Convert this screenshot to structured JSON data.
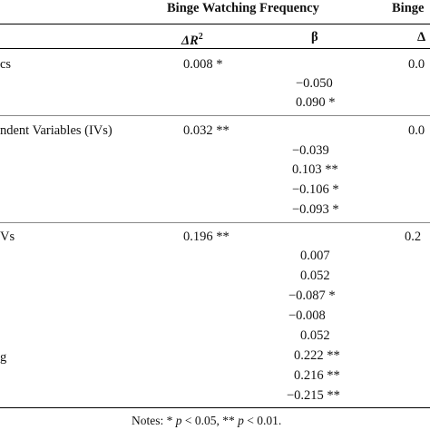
{
  "header": {
    "group1": "Binge Watching Frequency",
    "group2_partial": "Binge",
    "col_delta_r2": "ΔR",
    "col_delta_r2_sup": "2",
    "col_beta": "β",
    "col3_partial": "Δ"
  },
  "rows": {
    "demographics": {
      "label_partial": "cs",
      "delta_r2": "0.008 *",
      "right_partial": "0.0",
      "betas": [
        "−0.050",
        "0.090 *"
      ]
    },
    "ivs": {
      "label_partial": "ndent Variables (IVs)",
      "delta_r2": "0.032 **",
      "right_partial": "0.0",
      "betas": [
        "−0.039",
        "0.103 **",
        "−0.106 *",
        "−0.093 *"
      ]
    },
    "interactions": {
      "label_partial": "Vs",
      "label2_partial": "g",
      "delta_r2": "0.196 **",
      "right_partial": "0.2",
      "betas": [
        "0.007",
        "0.052",
        "−0.087 *",
        "−0.008",
        "0.052",
        "0.222 **",
        "0.216 **",
        "−0.215 **"
      ]
    }
  },
  "notes": "Notes: * p < 0.05, ** p < 0.01."
}
